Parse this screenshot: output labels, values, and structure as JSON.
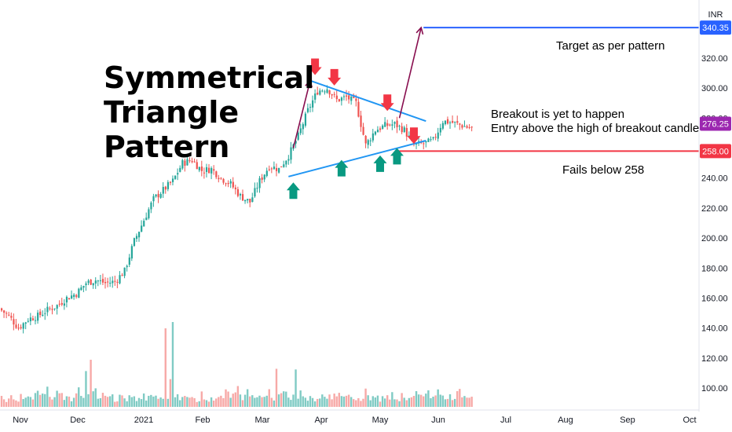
{
  "currency": "INR",
  "chart_data": {
    "type": "candlestick",
    "title": "Symmetrical Triangle Pattern",
    "title_lines": [
      "Symmetrical",
      "Triangle",
      "Pattern"
    ],
    "x_tick_labels": [
      "Nov",
      "Dec",
      "2021",
      "Feb",
      "Mar",
      "Apr",
      "May",
      "Jun",
      "Jul",
      "Aug",
      "Sep",
      "Oct"
    ],
    "y_tick_labels": [
      "100.00",
      "120.00",
      "140.00",
      "160.00",
      "180.00",
      "200.00",
      "220.00",
      "240.00",
      "260.00",
      "280.00",
      "300.00",
      "320.00"
    ],
    "ylim": [
      90,
      350
    ],
    "grid": false,
    "colors": {
      "up": "#26a69a",
      "down": "#ef5350",
      "trendline": "#2196f3",
      "projection": "#880e4f",
      "target": "#2962ff",
      "stop": "#f23645",
      "last_price": "#9c27b0",
      "arrow_down": "#f23645",
      "arrow_up": "#089981"
    },
    "price_path": [
      [
        0,
        153
      ],
      [
        4,
        148
      ],
      [
        8,
        140
      ],
      [
        12,
        146
      ],
      [
        16,
        148
      ],
      [
        20,
        152
      ],
      [
        24,
        155
      ],
      [
        28,
        160
      ],
      [
        32,
        163
      ],
      [
        36,
        170
      ],
      [
        40,
        172
      ],
      [
        44,
        170
      ],
      [
        48,
        171
      ],
      [
        52,
        178
      ],
      [
        56,
        198
      ],
      [
        60,
        212
      ],
      [
        64,
        226
      ],
      [
        68,
        232
      ],
      [
        72,
        238
      ],
      [
        76,
        250
      ],
      [
        80,
        252
      ],
      [
        84,
        245
      ],
      [
        88,
        246
      ],
      [
        92,
        240
      ],
      [
        96,
        236
      ],
      [
        100,
        228
      ],
      [
        104,
        224
      ],
      [
        108,
        238
      ],
      [
        112,
        248
      ],
      [
        116,
        246
      ],
      [
        120,
        255
      ],
      [
        124,
        268
      ],
      [
        128,
        285
      ],
      [
        132,
        298
      ],
      [
        136,
        300
      ],
      [
        140,
        292
      ],
      [
        144,
        294
      ],
      [
        148,
        290
      ],
      [
        152,
        262
      ],
      [
        156,
        272
      ],
      [
        160,
        275
      ],
      [
        164,
        276
      ],
      [
        168,
        272
      ],
      [
        172,
        262
      ],
      [
        176,
        263
      ],
      [
        180,
        265
      ],
      [
        184,
        278
      ],
      [
        188,
        277
      ],
      [
        192,
        275
      ],
      [
        196,
        273
      ],
      [
        200,
        276.25
      ]
    ],
    "volume_heights": [
      9,
      6,
      6,
      7,
      14,
      8,
      4,
      6,
      12,
      7,
      6,
      8,
      10,
      9,
      17,
      15,
      10,
      12,
      14,
      21,
      10,
      8,
      11,
      18,
      12,
      14,
      8,
      9,
      11,
      7,
      10,
      12,
      22,
      9,
      8,
      10,
      11,
      12,
      15,
      19,
      9,
      8,
      12,
      14,
      10,
      8,
      12,
      6,
      7,
      12,
      10,
      7,
      6,
      9,
      11,
      8,
      7,
      10,
      9,
      14,
      8,
      12,
      11,
      13,
      9,
      10,
      8,
      9,
      7,
      8,
      6,
      5,
      9,
      11,
      7,
      9,
      8,
      10,
      6
    ],
    "trendlines": [
      {
        "name": "upper",
        "from": {
          "t": 128,
          "price": 305
        },
        "to": {
          "t": 176,
          "price": 278
        }
      },
      {
        "name": "lower",
        "from": {
          "t": 119,
          "price": 241
        },
        "to": {
          "t": 176,
          "price": 265
        }
      }
    ],
    "horizontal_levels": [
      {
        "name": "target",
        "price": 340.35,
        "label": "340.35",
        "from_t": 175
      },
      {
        "name": "stop",
        "price": 258.0,
        "label": "258.00",
        "from_t": 164
      }
    ],
    "last_price": {
      "value": 276.25,
      "label": "276.25"
    },
    "pattern_projection": [
      {
        "t": 121,
        "price": 260
      },
      {
        "t": 128,
        "price": 305
      }
    ],
    "breakout_projection": [
      {
        "t": 165,
        "price": 280
      },
      {
        "t": 174,
        "price": 340.35
      }
    ],
    "down_arrows": [
      {
        "t": 130,
        "price": 314
      },
      {
        "t": 138,
        "price": 307
      },
      {
        "t": 160,
        "price": 290
      },
      {
        "t": 171,
        "price": 268
      }
    ],
    "up_arrows": [
      {
        "t": 121,
        "price": 235
      },
      {
        "t": 141,
        "price": 250
      },
      {
        "t": 157,
        "price": 253
      },
      {
        "t": 164,
        "price": 258
      }
    ],
    "annotations": {
      "target": "Target as per pattern",
      "breakout_line1": "Breakout is yet to happen",
      "breakout_line2": "Entry above the high of breakout candle",
      "fails": "Fails below 258"
    }
  }
}
